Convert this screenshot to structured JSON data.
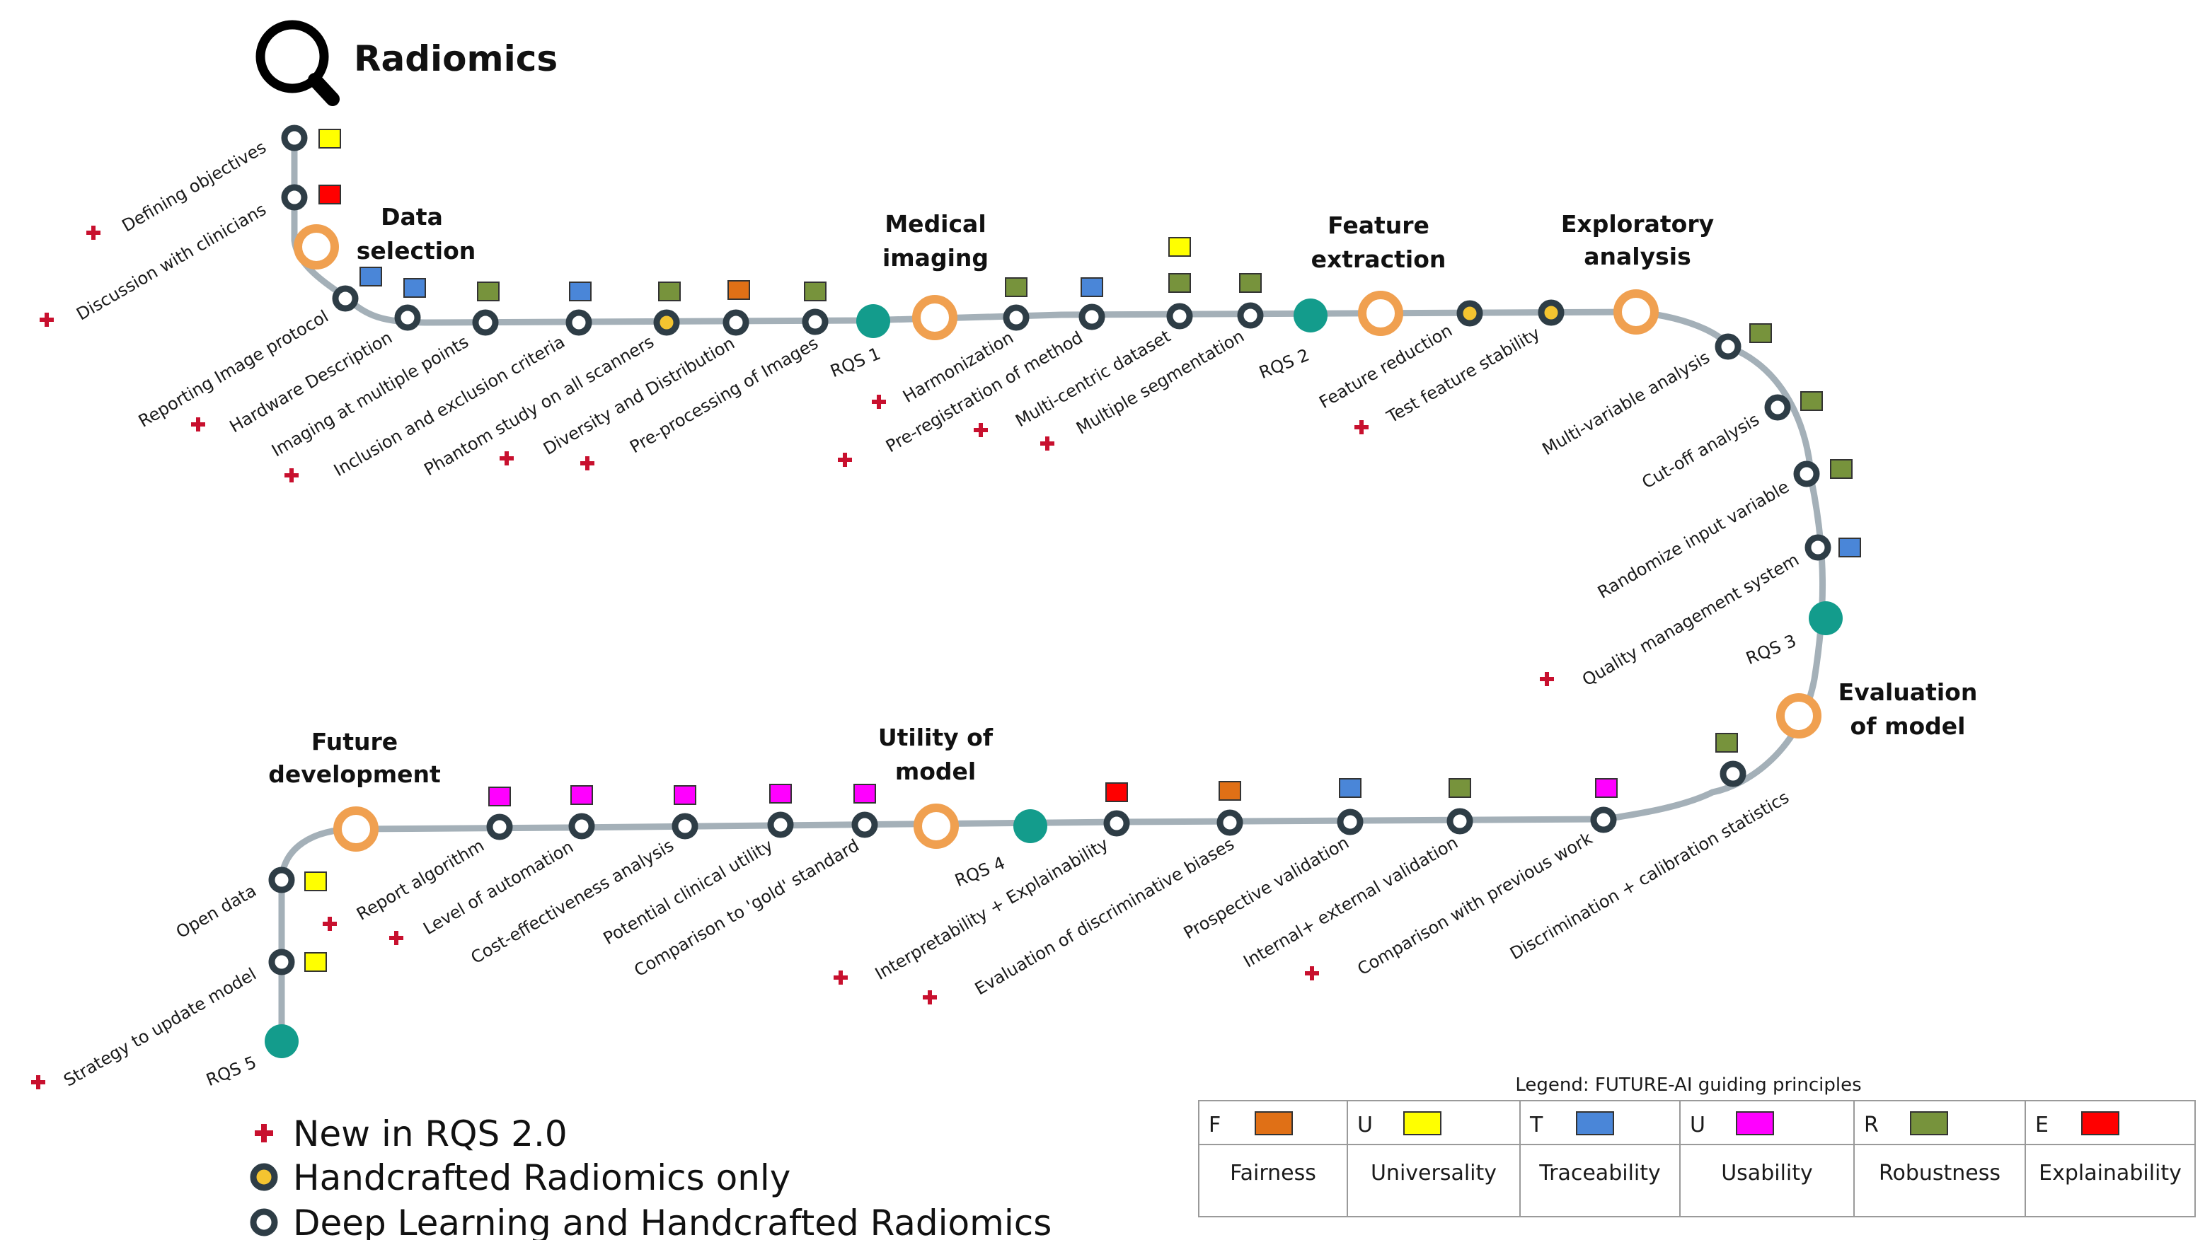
{
  "title": "Radiomics",
  "colors": {
    "track": "#a4b0b8",
    "ring_dark": "#2e3d46",
    "ring_orange": "#f0a050",
    "rqs_teal": "#139c8c",
    "handcrafted_fill": "#f4c430",
    "new_marker": "#c8102e",
    "fairness": "#e07016",
    "universality": "#ffff00",
    "traceability": "#4a86d8",
    "usability": "#ff00ff",
    "robustness": "#77933c",
    "explainability": "#ff0000"
  },
  "stages": [
    {
      "id": "data-selection",
      "lines": [
        "Data",
        "selection"
      ]
    },
    {
      "id": "medical-imaging",
      "lines": [
        "Medical",
        "imaging"
      ]
    },
    {
      "id": "feature-extraction",
      "lines": [
        "Feature",
        "extraction"
      ]
    },
    {
      "id": "exploratory-analysis",
      "lines": [
        "Exploratory",
        "analysis"
      ]
    },
    {
      "id": "evaluation-of-model",
      "lines": [
        "Evaluation",
        "of model"
      ]
    },
    {
      "id": "utility-of-model",
      "lines": [
        "Utility of",
        "model"
      ]
    },
    {
      "id": "future-development",
      "lines": [
        "Future",
        "development"
      ]
    }
  ],
  "rqs_labels": [
    "RQS 1",
    "RQS 2",
    "RQS 3",
    "RQS 4",
    "RQS 5"
  ],
  "steps": [
    {
      "label": "Defining objectives",
      "new": true,
      "type": "both",
      "principle": "universality"
    },
    {
      "label": "Discussion with clinicians",
      "new": true,
      "type": "both",
      "principle": "explainability"
    },
    {
      "label": "Reporting Image protocol",
      "new": false,
      "type": "both",
      "principle": "traceability"
    },
    {
      "label": "Hardware Description",
      "new": true,
      "type": "both",
      "principle": "traceability"
    },
    {
      "label": "Imaging at multiple points",
      "new": false,
      "type": "both",
      "principle": "robustness"
    },
    {
      "label": "Inclusion and exclusion criteria",
      "new": true,
      "type": "both",
      "principle": "traceability"
    },
    {
      "label": "Phantom study on all scanners",
      "new": false,
      "type": "handcrafted",
      "principle": "robustness"
    },
    {
      "label": "Diversity and Distribution",
      "new": true,
      "type": "both",
      "principle": "fairness"
    },
    {
      "label": "Pre-processing of Images",
      "new": true,
      "type": "both",
      "principle": "robustness"
    },
    {
      "label": "Harmonization",
      "new": true,
      "type": "both",
      "principle": "robustness"
    },
    {
      "label": "Pre-registration of method",
      "new": true,
      "type": "both",
      "principle": "traceability"
    },
    {
      "label": "Multi-centric dataset",
      "new": true,
      "type": "both",
      "principle": "robustness",
      "principle2": "universality"
    },
    {
      "label": "Multiple segmentation",
      "new": true,
      "type": "both",
      "principle": "robustness"
    },
    {
      "label": "Feature reduction",
      "new": false,
      "type": "handcrafted",
      "principle": ""
    },
    {
      "label": "Test feature stability",
      "new": true,
      "type": "handcrafted",
      "principle": ""
    },
    {
      "label": "Multi-variable analysis",
      "new": false,
      "type": "both",
      "principle": "robustness"
    },
    {
      "label": "Cut-off analysis",
      "new": false,
      "type": "both",
      "principle": "robustness"
    },
    {
      "label": "Randomize input variable",
      "new": false,
      "type": "both",
      "principle": "robustness"
    },
    {
      "label": "Quality management system",
      "new": true,
      "type": "both",
      "principle": "traceability"
    },
    {
      "label": "Discrimination + calibration statistics",
      "new": false,
      "type": "both",
      "principle": "robustness"
    },
    {
      "label": "Comparison with previous work",
      "new": true,
      "type": "both",
      "principle": "usability"
    },
    {
      "label": "Internal+ external validation",
      "new": false,
      "type": "both",
      "principle": "robustness"
    },
    {
      "label": "Prospective validation",
      "new": false,
      "type": "both",
      "principle": "traceability"
    },
    {
      "label": "Evaluation of discriminative biases",
      "new": true,
      "type": "both",
      "principle": "fairness"
    },
    {
      "label": "Interpretability + Explainability",
      "new": true,
      "type": "both",
      "principle": "explainability"
    },
    {
      "label": "Comparison to 'gold' standard",
      "new": false,
      "type": "both",
      "principle": "usability"
    },
    {
      "label": "Potential clinical utility",
      "new": false,
      "type": "both",
      "principle": "usability"
    },
    {
      "label": "Cost-effectiveness analysis",
      "new": false,
      "type": "both",
      "principle": "usability"
    },
    {
      "label": "Level of automation",
      "new": true,
      "type": "both",
      "principle": "usability"
    },
    {
      "label": "Report algorithm",
      "new": true,
      "type": "both",
      "principle": "usability"
    },
    {
      "label": "Open data",
      "new": false,
      "type": "both",
      "principle": "universality"
    },
    {
      "label": "Strategy to update model",
      "new": true,
      "type": "both",
      "principle": "universality"
    }
  ],
  "key": [
    {
      "symbol": "plus",
      "text": "New in RQS 2.0"
    },
    {
      "symbol": "handcrafted",
      "text": "Handcrafted Radiomics only"
    },
    {
      "symbol": "both",
      "text": "Deep Learning and Handcrafted Radiomics"
    }
  ],
  "legend": {
    "title": "Legend: FUTURE-AI guiding principles",
    "items": [
      {
        "letter": "F",
        "name": "Fairness",
        "principle": "fairness"
      },
      {
        "letter": "U",
        "name": "Universality",
        "principle": "universality"
      },
      {
        "letter": "T",
        "name": "Traceability",
        "principle": "traceability"
      },
      {
        "letter": "U",
        "name": "Usability",
        "principle": "usability"
      },
      {
        "letter": "R",
        "name": "Robustness",
        "principle": "robustness"
      },
      {
        "letter": "E",
        "name": "Explainability",
        "principle": "explainability"
      }
    ]
  }
}
